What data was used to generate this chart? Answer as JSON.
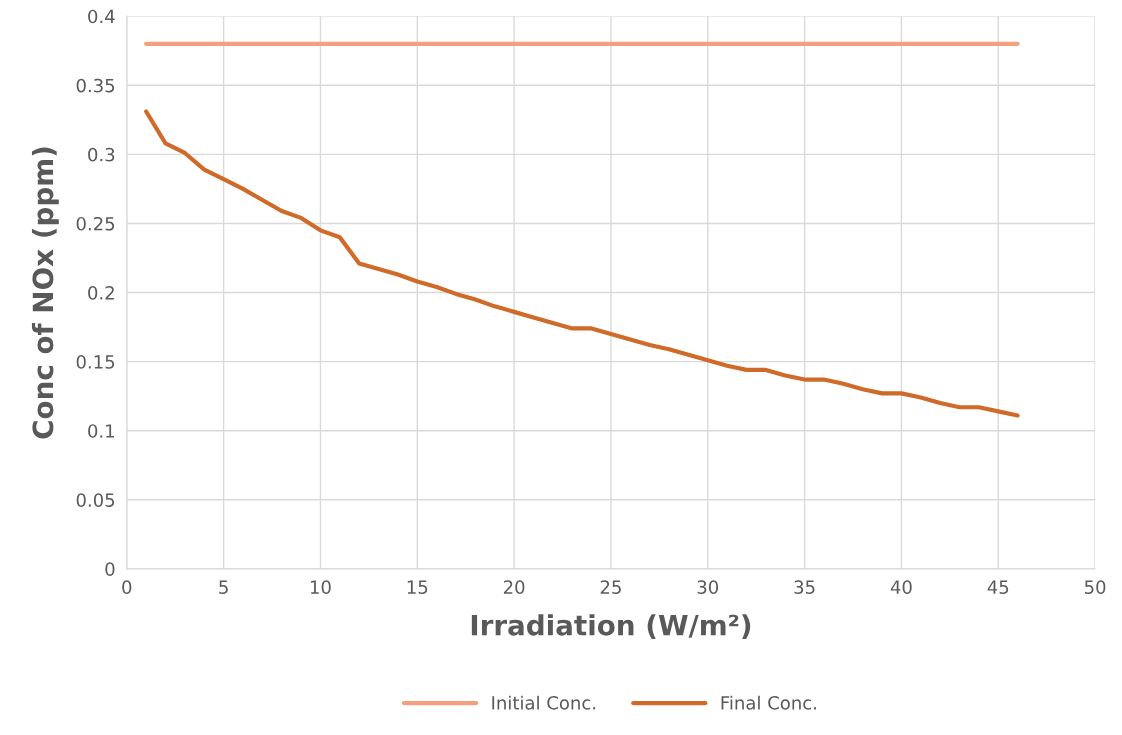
{
  "chart_data": {
    "type": "line",
    "xlabel": "Irradiation (W/m²)",
    "ylabel": "Conc of NOx (ppm)",
    "xlim": [
      0,
      50
    ],
    "xticks": [
      0,
      5,
      10,
      15,
      20,
      25,
      30,
      35,
      40,
      45,
      50
    ],
    "ylim": [
      0,
      0.4
    ],
    "yticks": [
      0,
      0.05,
      0.1,
      0.15,
      0.2,
      0.25,
      0.3,
      0.35,
      0.4
    ],
    "grid": true,
    "legend": "bottom",
    "marker": "none",
    "line_style": "solid",
    "series": [
      {
        "name": "Initial Conc.",
        "color": "#f4a07e",
        "x": [
          1,
          46
        ],
        "values": [
          0.38,
          0.38
        ]
      },
      {
        "name": "Final Conc.",
        "color": "#d06a28",
        "x": [
          1,
          2,
          3,
          4,
          5,
          6,
          7,
          8,
          9,
          10,
          11,
          12,
          13,
          14,
          15,
          16,
          17,
          18,
          19,
          20,
          21,
          22,
          23,
          24,
          25,
          26,
          27,
          28,
          29,
          30,
          31,
          32,
          33,
          34,
          35,
          36,
          37,
          38,
          39,
          40,
          41,
          42,
          43,
          44,
          45,
          46
        ],
        "values": [
          0.331,
          0.308,
          0.301,
          0.289,
          0.282,
          0.275,
          0.267,
          0.259,
          0.254,
          0.245,
          0.24,
          0.221,
          0.217,
          0.213,
          0.208,
          0.204,
          0.199,
          0.195,
          0.19,
          0.186,
          0.182,
          0.178,
          0.174,
          0.174,
          0.17,
          0.166,
          0.162,
          0.159,
          0.155,
          0.151,
          0.147,
          0.144,
          0.144,
          0.14,
          0.137,
          0.137,
          0.134,
          0.13,
          0.127,
          0.127,
          0.124,
          0.12,
          0.117,
          0.117,
          0.114,
          0.111
        ]
      }
    ]
  }
}
